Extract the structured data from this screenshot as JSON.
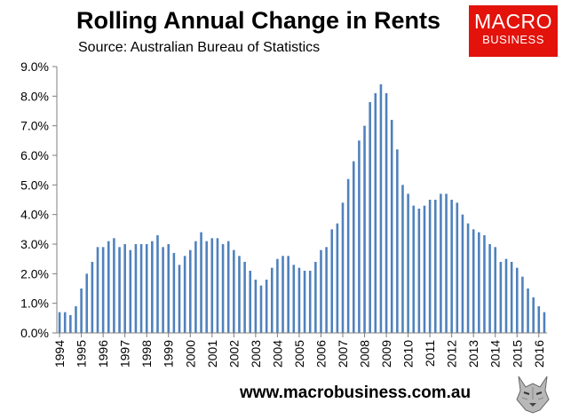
{
  "title": "Rolling Annual Change in Rents",
  "subtitle": "Source: Australian Bureau of Statistics",
  "logo": {
    "line1": "MACRO",
    "line2": "BUSINESS",
    "color": "#e3120b"
  },
  "footer_url": "www.macrobusiness.com.au",
  "chart_data": {
    "type": "bar",
    "title": "Rolling Annual Change in Rents",
    "xlabel": "",
    "ylabel": "",
    "ylim": [
      0,
      9
    ],
    "grid": false,
    "legend": "none",
    "bar_color": "#4f81bd",
    "yticks": [
      "0.0%",
      "1.0%",
      "2.0%",
      "3.0%",
      "4.0%",
      "5.0%",
      "6.0%",
      "7.0%",
      "8.0%",
      "9.0%"
    ],
    "xticks": [
      "1994",
      "1995",
      "1996",
      "1997",
      "1998",
      "1999",
      "2000",
      "2001",
      "2002",
      "2003",
      "2004",
      "2005",
      "2006",
      "2007",
      "2008",
      "2009",
      "2010",
      "2011",
      "2012",
      "2013",
      "2014",
      "2015",
      "2016"
    ],
    "start_year": 1994,
    "periods_per_year": 4,
    "values": [
      0.7,
      0.7,
      0.6,
      0.9,
      1.5,
      2.0,
      2.4,
      2.9,
      2.9,
      3.1,
      3.2,
      2.9,
      3.0,
      2.8,
      3.0,
      3.0,
      3.0,
      3.1,
      3.3,
      2.9,
      3.0,
      2.7,
      2.3,
      2.6,
      2.8,
      3.1,
      3.4,
      3.1,
      3.2,
      3.2,
      3.0,
      3.1,
      2.8,
      2.6,
      2.4,
      2.1,
      1.8,
      1.6,
      1.8,
      2.2,
      2.5,
      2.6,
      2.6,
      2.3,
      2.2,
      2.1,
      2.1,
      2.4,
      2.8,
      2.9,
      3.5,
      3.7,
      4.4,
      5.2,
      5.8,
      6.5,
      7.0,
      7.8,
      8.1,
      8.4,
      8.1,
      7.2,
      6.2,
      5.0,
      4.7,
      4.3,
      4.2,
      4.3,
      4.5,
      4.5,
      4.7,
      4.7,
      4.5,
      4.4,
      4.0,
      3.7,
      3.5,
      3.4,
      3.3,
      3.0,
      2.9,
      2.4,
      2.5,
      2.4,
      2.2,
      1.9,
      1.5,
      1.2,
      0.9,
      0.7
    ]
  }
}
